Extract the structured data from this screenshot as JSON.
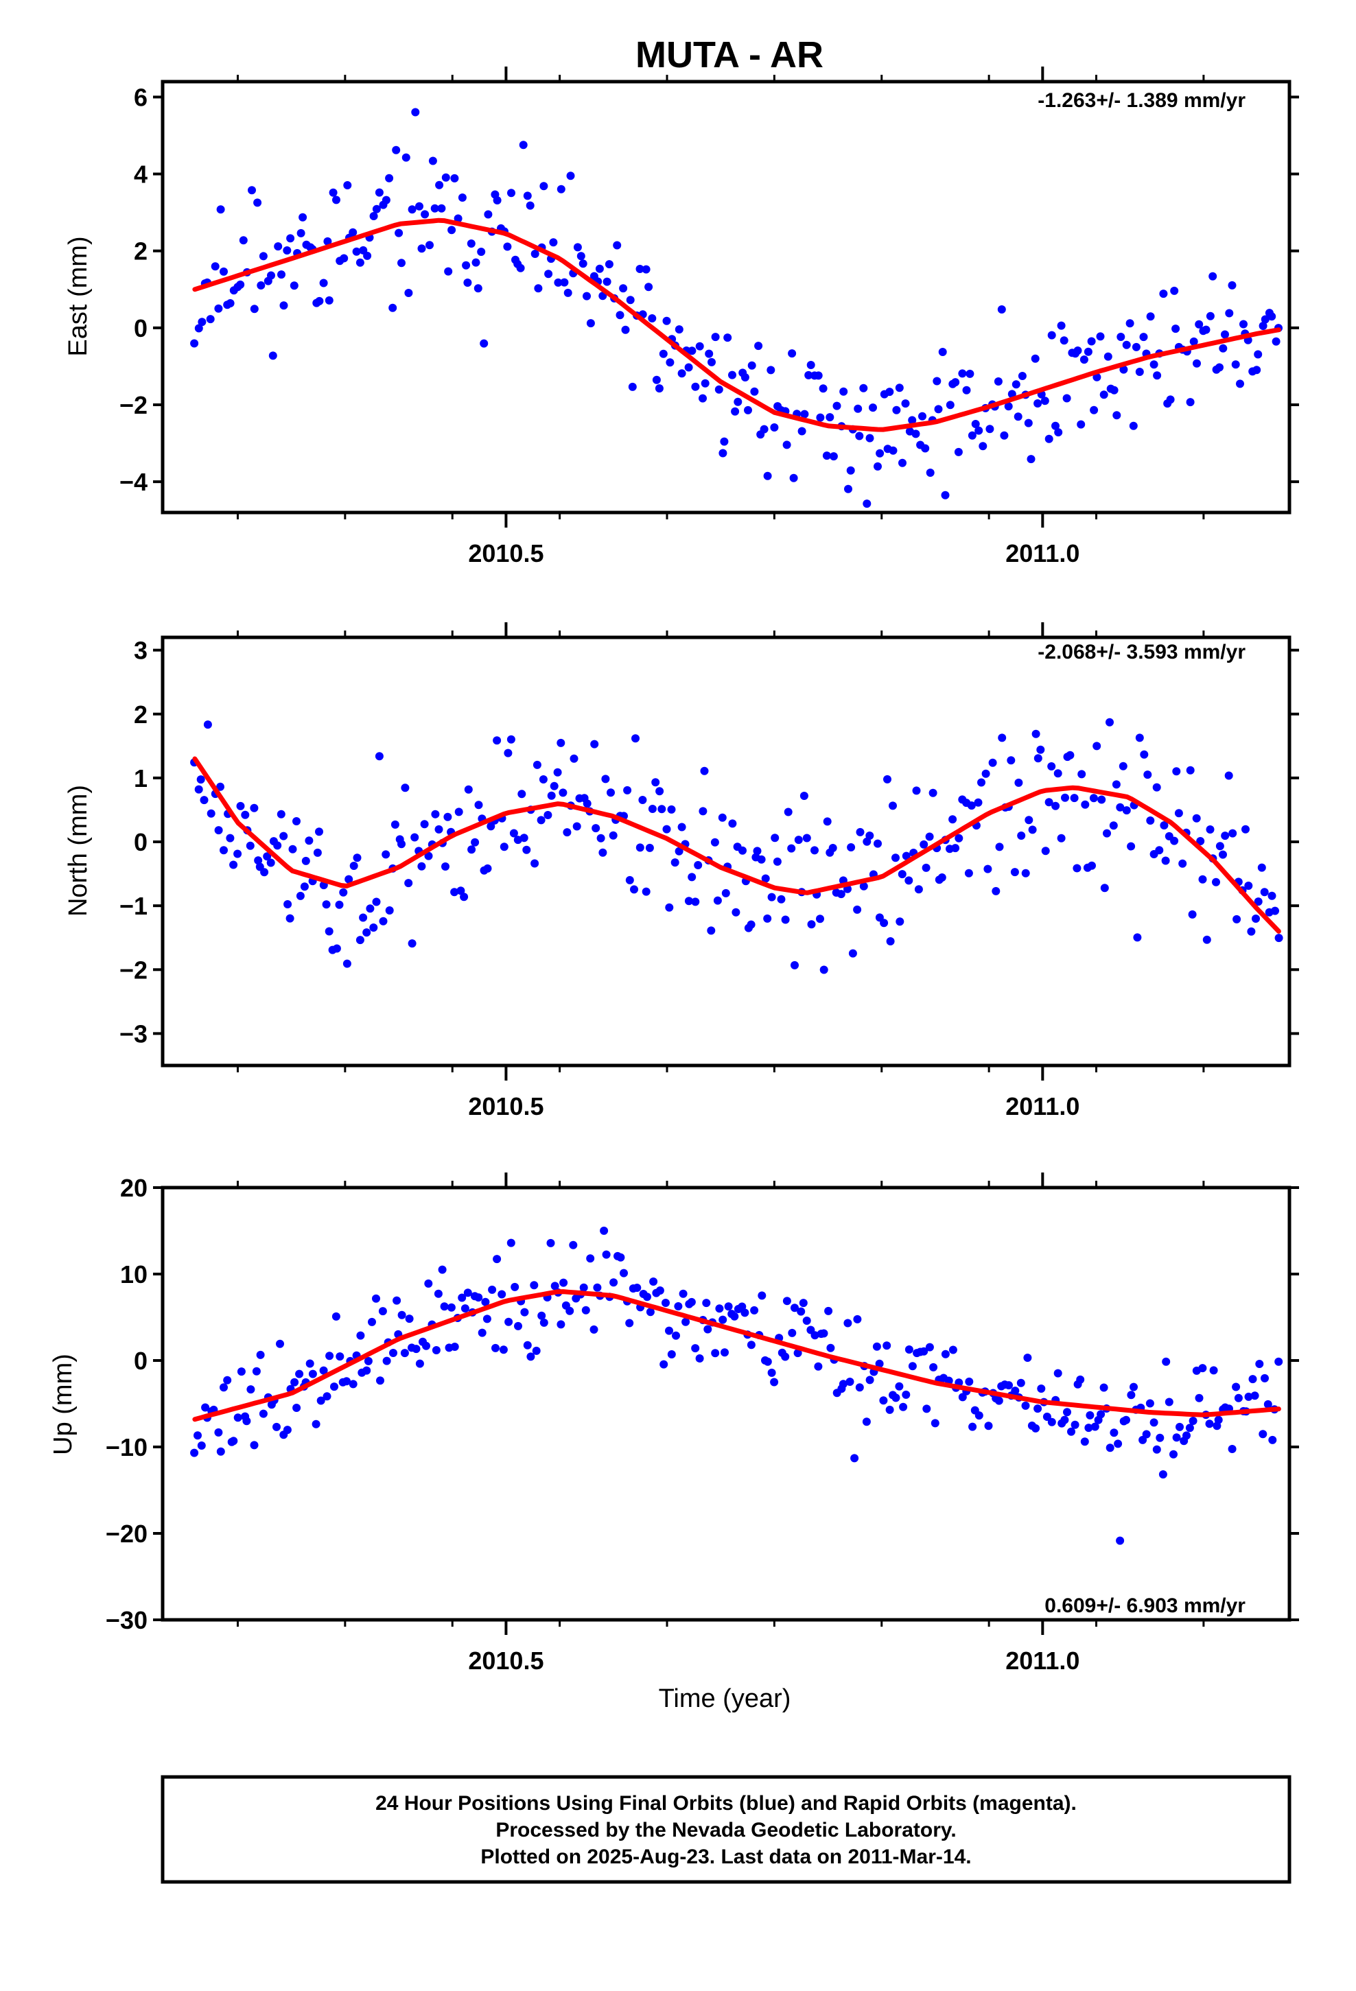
{
  "chart_data": {
    "type": "scatter",
    "title": "MUTA - AR",
    "xlabel": "Time (year)",
    "xlim": [
      2010.18,
      2011.23
    ],
    "x_ticks": [
      2010.5,
      2011.0
    ],
    "x_tick_labels": [
      "2010.5",
      "2011.0"
    ],
    "panels": [
      {
        "name": "east",
        "ylabel": "East (mm)",
        "ylim": [
          -4.8,
          6.4
        ],
        "y_ticks": [
          -4,
          -2,
          0,
          2,
          4,
          6
        ],
        "y_tick_labels": [
          "−4",
          "−2",
          "0",
          "2",
          "4",
          "6"
        ],
        "rate_text": "-1.263+/- 1.389 mm/yr",
        "rate_position": "top-right",
        "fit": {
          "x": [
            2010.21,
            2010.3,
            2010.4,
            2010.44,
            2010.5,
            2010.55,
            2010.6,
            2010.65,
            2010.7,
            2010.75,
            2010.8,
            2010.85,
            2010.9,
            2010.95,
            2011.0,
            2011.05,
            2011.1,
            2011.15,
            2011.2,
            2011.22
          ],
          "y": [
            1.0,
            1.8,
            2.7,
            2.8,
            2.45,
            1.8,
            0.8,
            -0.3,
            -1.4,
            -2.2,
            -2.55,
            -2.65,
            -2.45,
            -2.05,
            -1.6,
            -1.15,
            -0.75,
            -0.45,
            -0.15,
            -0.05
          ]
        },
        "seed": 11,
        "noise": 1.1,
        "n_points": 330
      },
      {
        "name": "north",
        "ylabel": "North (mm)",
        "ylim": [
          -3.5,
          3.2
        ],
        "y_ticks": [
          -3,
          -2,
          -1,
          0,
          1,
          2,
          3
        ],
        "y_tick_labels": [
          "−3",
          "−2",
          "−1",
          "0",
          "1",
          "2",
          "3"
        ],
        "rate_text": "-2.068+/- 3.593 mm/yr",
        "rate_position": "top-right",
        "fit": {
          "x": [
            2010.21,
            2010.25,
            2010.3,
            2010.35,
            2010.4,
            2010.45,
            2010.5,
            2010.55,
            2010.6,
            2010.65,
            2010.7,
            2010.75,
            2010.78,
            2010.85,
            2010.9,
            2010.95,
            2011.0,
            2011.03,
            2011.08,
            2011.12,
            2011.16,
            2011.2,
            2011.22
          ],
          "y": [
            1.3,
            0.3,
            -0.45,
            -0.7,
            -0.4,
            0.1,
            0.45,
            0.6,
            0.4,
            0.05,
            -0.4,
            -0.72,
            -0.8,
            -0.55,
            -0.05,
            0.45,
            0.8,
            0.85,
            0.7,
            0.3,
            -0.3,
            -1.05,
            -1.4
          ]
        },
        "seed": 23,
        "noise": 0.75,
        "n_points": 330
      },
      {
        "name": "up",
        "ylabel": "Up (mm)",
        "ylim": [
          -30,
          20
        ],
        "y_ticks": [
          -30,
          -20,
          -10,
          0,
          10,
          20
        ],
        "y_tick_labels": [
          "−30",
          "−20",
          "−10",
          "0",
          "10",
          "20"
        ],
        "rate_text": "0.609+/- 6.903 mm/yr",
        "rate_position": "bottom-right",
        "fit": {
          "x": [
            2010.21,
            2010.3,
            2010.4,
            2010.5,
            2010.55,
            2010.6,
            2010.7,
            2010.8,
            2010.9,
            2011.0,
            2011.1,
            2011.15,
            2011.22
          ],
          "y": [
            -6.8,
            -3.8,
            2.5,
            6.9,
            8.0,
            7.5,
            4.0,
            0.5,
            -2.6,
            -4.8,
            -6.0,
            -6.3,
            -5.6
          ]
        },
        "seed": 37,
        "noise": 3.6,
        "n_points": 330
      }
    ]
  },
  "footer": {
    "line1": "24 Hour Positions Using Final Orbits (blue) and Rapid Orbits (magenta).",
    "line2": "Processed by the Nevada Geodetic Laboratory.",
    "line3": "Plotted on 2025-Aug-23. Last data on 2011-Mar-14."
  },
  "colors": {
    "points": "#0000ff",
    "fit": "#ff0000",
    "axes": "#000000"
  }
}
